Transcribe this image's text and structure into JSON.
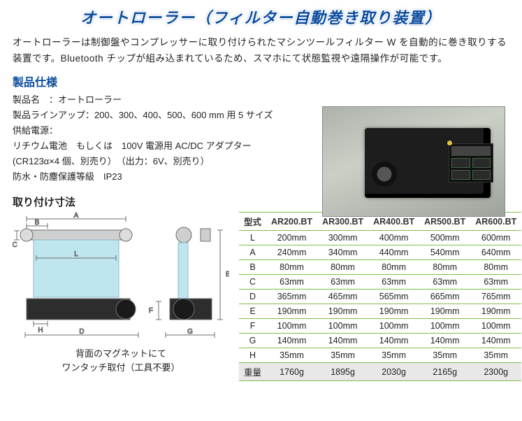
{
  "title": "オートローラー（フィルター自動巻き取り装置）",
  "intro": "オートローラーは制御盤やコンプレッサーに取り付けられたマシンツールフィルター W を自動的に巻き取りする装置です。Bluetooth チップが組み込まれているため、スマホにて状態監視や遠隔操作が可能です。",
  "spec_heading": "製品仕様",
  "specs": {
    "line1": "製品名　：オートローラー",
    "line2": "製品ラインアップ：200、300、400、500、600 mm 用  5 サイズ",
    "line3": "供給電源：",
    "line4": "リチウム電池　もしくは　100V 電源用 AC/DC アダプター",
    "line5": "(CR123α×4 個、別売り）　（出力：6V、別売り）",
    "line6": "防水・防塵保護等級　IP23"
  },
  "mount_heading": "取り付け寸法",
  "diagram": {
    "labels": {
      "A": "A",
      "B": "B",
      "C": "C",
      "D": "D",
      "E": "E",
      "F": "F",
      "G": "G",
      "H": "H",
      "L": "L"
    },
    "caption_l1": "背面のマグネットにて",
    "caption_l2": "ワンタッチ取付（工具不要）",
    "colors": {
      "panel": "#bfe6ef",
      "frame": "#cfcfcf",
      "line": "#6d6d6d",
      "motor": "#2d2d2d"
    }
  },
  "table": {
    "header_label": "型式",
    "models": [
      "AR200.BT",
      "AR300.BT",
      "AR400.BT",
      "AR500.BT",
      "AR600.BT"
    ],
    "rows": [
      {
        "label": "L",
        "vals": [
          "200mm",
          "300mm",
          "400mm",
          "500mm",
          "600mm"
        ]
      },
      {
        "label": "A",
        "vals": [
          "240mm",
          "340mm",
          "440mm",
          "540mm",
          "640mm"
        ]
      },
      {
        "label": "B",
        "vals": [
          "80mm",
          "80mm",
          "80mm",
          "80mm",
          "80mm"
        ]
      },
      {
        "label": "C",
        "vals": [
          "63mm",
          "63mm",
          "63mm",
          "63mm",
          "63mm"
        ]
      },
      {
        "label": "D",
        "vals": [
          "365mm",
          "465mm",
          "565mm",
          "665mm",
          "765mm"
        ]
      },
      {
        "label": "E",
        "vals": [
          "190mm",
          "190mm",
          "190mm",
          "190mm",
          "190mm"
        ]
      },
      {
        "label": "F",
        "vals": [
          "100mm",
          "100mm",
          "100mm",
          "100mm",
          "100mm"
        ]
      },
      {
        "label": "G",
        "vals": [
          "140mm",
          "140mm",
          "140mm",
          "140mm",
          "140mm"
        ]
      },
      {
        "label": "H",
        "vals": [
          "35mm",
          "35mm",
          "35mm",
          "35mm",
          "35mm"
        ]
      }
    ],
    "weight": {
      "label": "重量",
      "vals": [
        "1760g",
        "1895g",
        "2030g",
        "2165g",
        "2300g"
      ]
    },
    "colors": {
      "rule": "#7fbf4d",
      "weight_bg": "#e8e8e8"
    }
  }
}
